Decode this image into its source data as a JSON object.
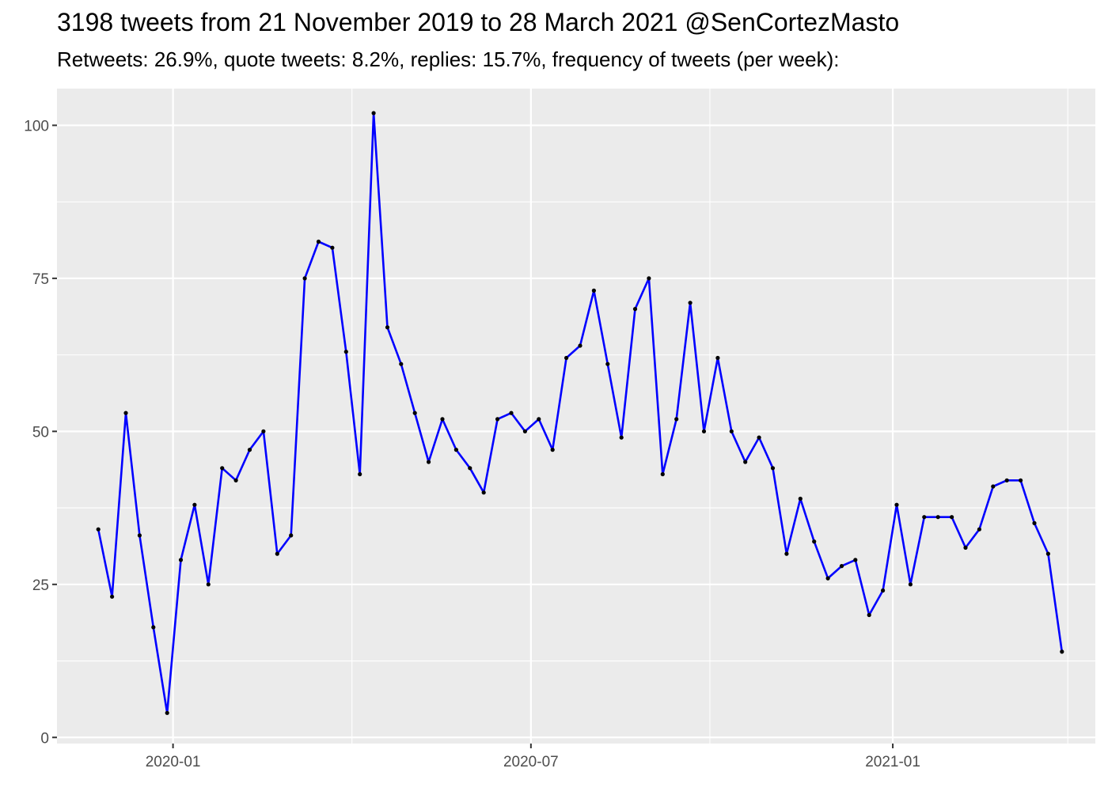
{
  "chart_data": {
    "type": "line",
    "title": "3198 tweets from 21 November 2019 to 28 March 2021 @SenCortezMasto",
    "subtitle": "Retweets: 26.9%, quote tweets: 8.2%, replies: 15.7%, frequency of tweets (per week):",
    "xlabel": "",
    "ylabel": "",
    "x_ticks": [
      "2020-01",
      "2020-07",
      "2021-01"
    ],
    "y_ticks": [
      "0",
      "25",
      "50",
      "75",
      "100"
    ],
    "ylim": [
      -1,
      106
    ],
    "xlim": [
      "2019-11-03",
      "2021-04-14"
    ],
    "grid": true,
    "legend": "none",
    "line_color": "#0000ff",
    "point_color": "#000000",
    "panel_color": "#ebebeb",
    "series": [
      {
        "x": [
          "2019-11-24",
          "2019-12-01",
          "2019-12-08",
          "2019-12-15",
          "2019-12-22",
          "2019-12-29",
          "2020-01-05",
          "2020-01-12",
          "2020-01-19",
          "2020-01-26",
          "2020-02-02",
          "2020-02-09",
          "2020-02-16",
          "2020-02-23",
          "2020-03-01",
          "2020-03-08",
          "2020-03-15",
          "2020-03-22",
          "2020-03-29",
          "2020-04-05",
          "2020-04-12",
          "2020-04-19",
          "2020-04-26",
          "2020-05-03",
          "2020-05-10",
          "2020-05-17",
          "2020-05-24",
          "2020-05-31",
          "2020-06-07",
          "2020-06-14",
          "2020-06-21",
          "2020-06-28",
          "2020-07-05",
          "2020-07-12",
          "2020-07-19",
          "2020-07-26",
          "2020-08-02",
          "2020-08-09",
          "2020-08-16",
          "2020-08-23",
          "2020-08-30",
          "2020-09-06",
          "2020-09-13",
          "2020-09-20",
          "2020-09-27",
          "2020-10-04",
          "2020-10-11",
          "2020-10-18",
          "2020-10-25",
          "2020-11-01",
          "2020-11-08",
          "2020-11-15",
          "2020-11-22",
          "2020-11-29",
          "2020-12-06",
          "2020-12-13",
          "2020-12-20",
          "2020-12-27",
          "2021-01-03",
          "2021-01-10",
          "2021-01-17",
          "2021-01-24",
          "2021-01-31",
          "2021-02-07",
          "2021-02-14",
          "2021-02-21",
          "2021-02-28",
          "2021-03-07",
          "2021-03-14",
          "2021-03-21",
          "2021-03-28"
        ],
        "values": [
          34,
          23,
          53,
          33,
          18,
          4,
          29,
          38,
          25,
          44,
          42,
          47,
          50,
          30,
          33,
          75,
          81,
          80,
          63,
          43,
          102,
          67,
          61,
          53,
          45,
          52,
          47,
          44,
          40,
          52,
          53,
          50,
          52,
          47,
          62,
          64,
          73,
          61,
          49,
          70,
          75,
          43,
          52,
          71,
          50,
          62,
          50,
          45,
          49,
          44,
          30,
          39,
          32,
          26,
          28,
          29,
          20,
          24,
          38,
          25,
          36,
          36,
          36,
          31,
          34,
          41,
          42,
          42,
          35,
          30,
          14
        ]
      }
    ]
  }
}
